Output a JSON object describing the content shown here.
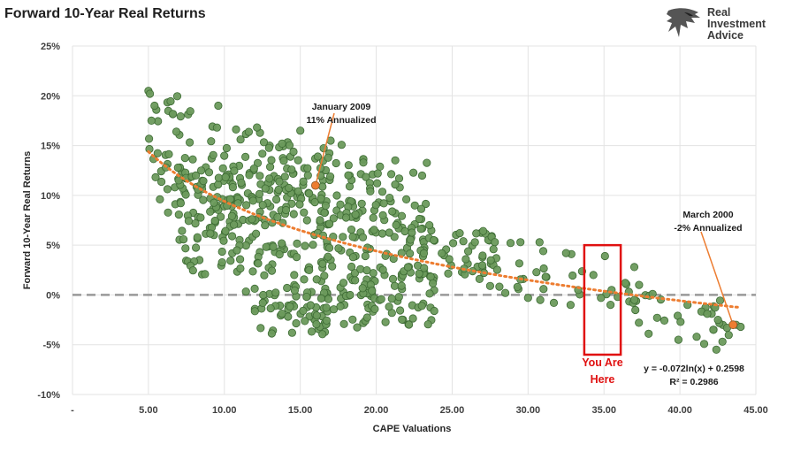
{
  "title": "Forward 10-Year Real Returns",
  "brand": {
    "line1": "Real",
    "line2": "Investment",
    "line3": "Advice",
    "color": "#3a3a3a"
  },
  "chart_data": {
    "type": "scatter",
    "xlabel": "CAPE Valuations",
    "ylabel": "Forward 10-Year Real Returns",
    "xlim": [
      0,
      45
    ],
    "ylim": [
      -10,
      25
    ],
    "x_ticks": [
      "-",
      "5.00",
      "10.00",
      "15.00",
      "20.00",
      "25.00",
      "30.00",
      "35.00",
      "40.00",
      "45.00"
    ],
    "y_ticks": [
      "25%",
      "20%",
      "15%",
      "10%",
      "5%",
      "0%",
      "-5%",
      "-10%"
    ],
    "grid": true,
    "point_color": "#6b9a5c",
    "trend_color": "#ed7d31",
    "zero_line_color": "#999999",
    "trendline": {
      "type": "log",
      "a": -0.072,
      "b": 0.2598,
      "x_range": [
        5,
        44
      ]
    },
    "equation": "y = -0.072ln(x) + 0.2598",
    "r_squared": "R² = 0.2986",
    "annotations": [
      {
        "id": "jan2009",
        "line1": "January 2009",
        "line2": "11% Annualized",
        "x": 16,
        "y": 11
      },
      {
        "id": "mar2000",
        "line1": "March 2000",
        "line2": "-2% Annualized",
        "x": 43.5,
        "y": -3
      }
    ],
    "highlight": {
      "line1": "You Are",
      "line2": "Here",
      "x_range": [
        33.7,
        36.1
      ],
      "y_range": [
        -6,
        5
      ],
      "color": "#e01010"
    },
    "clusters": [
      {
        "x": [
          5,
          8
        ],
        "y": [
          8,
          20
        ],
        "n": 45
      },
      {
        "x": [
          7,
          12
        ],
        "y": [
          2,
          13
        ],
        "n": 95
      },
      {
        "x": [
          9,
          14
        ],
        "y": [
          7,
          17
        ],
        "n": 65
      },
      {
        "x": [
          11,
          17
        ],
        "y": [
          -1.5,
          12
        ],
        "n": 110
      },
      {
        "x": [
          12,
          17
        ],
        "y": [
          -4,
          1
        ],
        "n": 40
      },
      {
        "x": [
          14,
          19
        ],
        "y": [
          8,
          16
        ],
        "n": 45
      },
      {
        "x": [
          16,
          20
        ],
        "y": [
          -3.5,
          9
        ],
        "n": 65
      },
      {
        "x": [
          18,
          23.5
        ],
        "y": [
          1,
          14
        ],
        "n": 85
      },
      {
        "x": [
          19,
          24
        ],
        "y": [
          -3,
          3
        ],
        "n": 50
      },
      {
        "x": [
          22,
          28
        ],
        "y": [
          2,
          6.5
        ],
        "n": 55
      },
      {
        "x": [
          27,
          33
        ],
        "y": [
          0,
          5.5
        ],
        "n": 18
      },
      {
        "x": [
          33,
          38
        ],
        "y": [
          -1,
          4.5
        ],
        "n": 14
      },
      {
        "x": [
          36,
          44
        ],
        "y": [
          -5,
          0
        ],
        "n": 18
      }
    ],
    "points": [
      [
        5,
        20.5
      ],
      [
        5.1,
        20.2
      ],
      [
        5.4,
        19
      ],
      [
        5.2,
        17.5
      ],
      [
        9.6,
        19
      ],
      [
        13.8,
        15.2
      ],
      [
        15,
        16.5
      ],
      [
        15.5,
        12
      ],
      [
        30.8,
        -0.5
      ],
      [
        31.7,
        -0.8
      ],
      [
        32.8,
        -1
      ],
      [
        30,
        -0.3
      ],
      [
        36.4,
        1.2
      ],
      [
        34.3,
        2
      ],
      [
        32.5,
        4.2
      ],
      [
        35.5,
        0.5
      ],
      [
        34.8,
        -0.3
      ],
      [
        33.3,
        0.5
      ],
      [
        29.3,
        0.8
      ],
      [
        28.5,
        0.2
      ],
      [
        27.5,
        0.9
      ],
      [
        26.8,
        1.6
      ],
      [
        35.9,
        -0.2
      ],
      [
        37,
        -0.5
      ],
      [
        38.2,
        0.1
      ],
      [
        40.5,
        -1
      ],
      [
        41.8,
        -1.9
      ],
      [
        41.1,
        -4.2
      ],
      [
        39.9,
        -4.5
      ],
      [
        42.4,
        -5.5
      ],
      [
        42.8,
        -4.7
      ],
      [
        43.1,
        -3.3
      ],
      [
        43.7,
        -3
      ],
      [
        44,
        -3.2
      ],
      [
        42.2,
        -3.5
      ],
      [
        42.5,
        -2.5
      ],
      [
        38.5,
        -2.3
      ],
      [
        37.3,
        -2.8
      ],
      [
        23.5,
        7
      ],
      [
        26.5,
        5.3
      ],
      [
        25.5,
        6.2
      ],
      [
        29.5,
        5.3
      ],
      [
        31,
        4.4
      ]
    ]
  }
}
